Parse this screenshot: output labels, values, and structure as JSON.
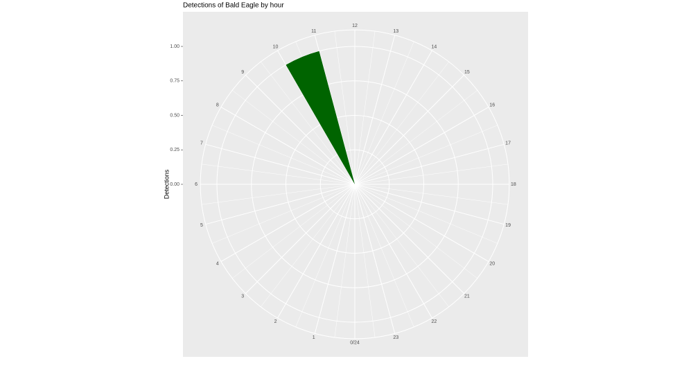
{
  "chart_data": {
    "type": "polar-bar",
    "title": "Detections of Bald Eagle by hour",
    "y_label": "Detections",
    "categories": [
      "0/24",
      "1",
      "2",
      "3",
      "4",
      "5",
      "6",
      "7",
      "8",
      "9",
      "10",
      "11",
      "12",
      "13",
      "14",
      "15",
      "16",
      "17",
      "18",
      "19",
      "20",
      "21",
      "22",
      "23"
    ],
    "values": [
      0,
      0,
      0,
      0,
      0,
      0,
      0,
      0,
      0,
      0,
      1,
      0,
      0,
      0,
      0,
      0,
      0,
      0,
      0,
      0,
      0,
      0,
      0,
      0
    ],
    "color": "#006400",
    "ylim": [
      0,
      1.12
    ],
    "yticks": [
      {
        "value": 0,
        "label": "0.00"
      },
      {
        "value": 0.25,
        "label": "0.25"
      },
      {
        "value": 0.5,
        "label": "0.50"
      },
      {
        "value": 0.75,
        "label": "0.75"
      },
      {
        "value": 1,
        "label": "1.00"
      }
    ],
    "grid": true
  }
}
